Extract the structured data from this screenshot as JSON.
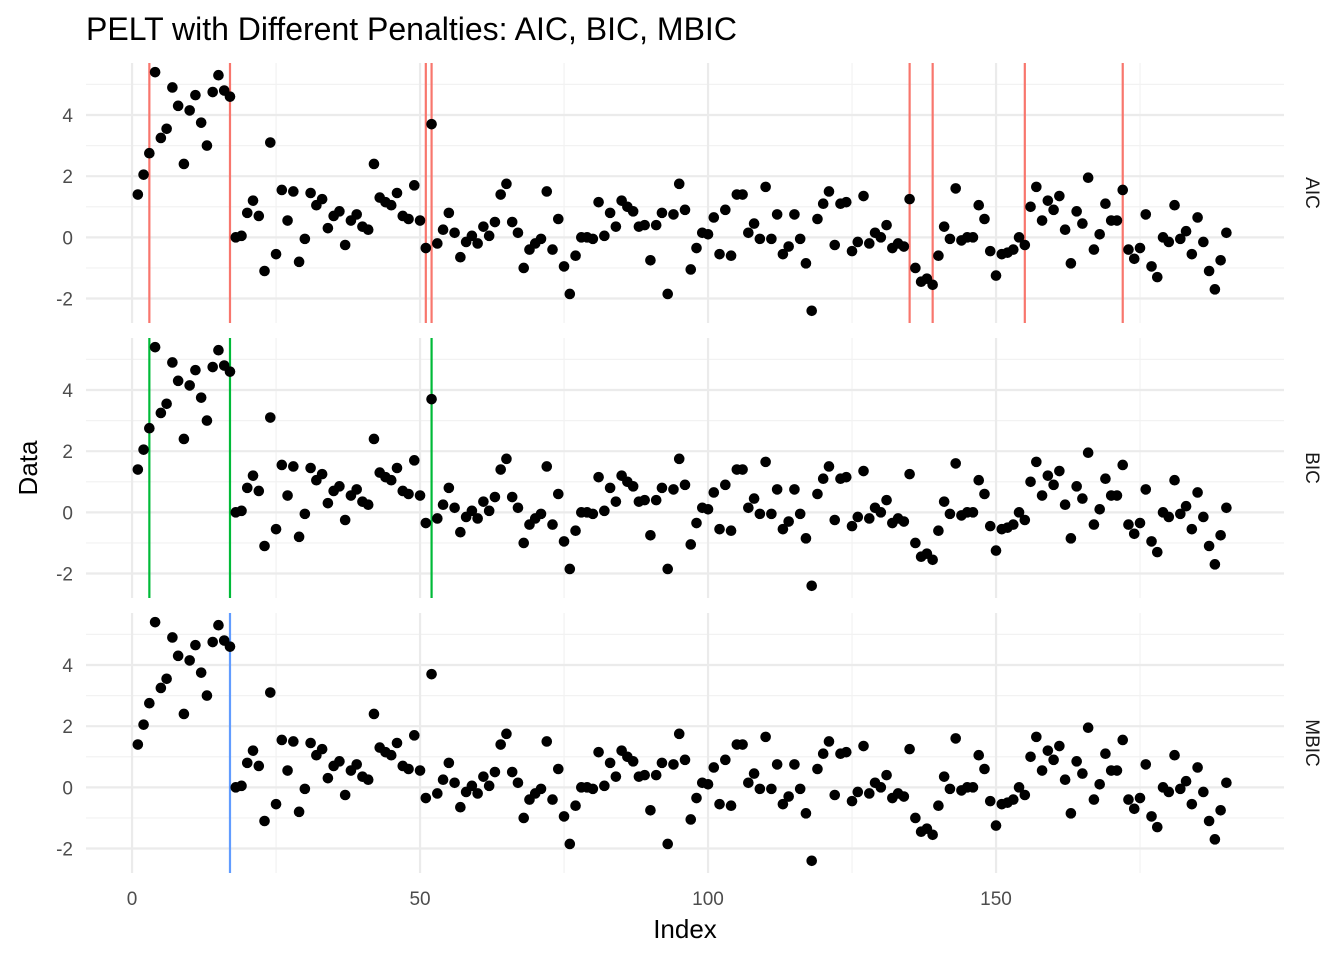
{
  "chart_data": {
    "type": "scatter",
    "title": "PELT with Different Penalties: AIC, BIC, MBIC",
    "xlabel": "Index",
    "ylabel": "Data",
    "xlim": [
      -8,
      200
    ],
    "ylim": [
      -2.8,
      5.7
    ],
    "x_ticks": [
      0,
      50,
      100,
      150
    ],
    "x_tick_labels": [
      "0",
      "50",
      "100",
      "150"
    ],
    "y_ticks": [
      -2,
      0,
      2,
      4
    ],
    "y_tick_labels": [
      "-2",
      "0",
      "2",
      "4"
    ],
    "grid": true,
    "legend": "none",
    "point_color": "#000000",
    "values": [
      1.4,
      2.05,
      2.75,
      5.4,
      3.25,
      3.55,
      4.9,
      4.3,
      2.4,
      4.15,
      4.65,
      3.75,
      3.0,
      4.75,
      5.3,
      4.8,
      4.6,
      0.0,
      0.05,
      0.8,
      1.2,
      0.7,
      -1.1,
      3.1,
      -0.55,
      1.55,
      0.55,
      1.5,
      -0.8,
      -0.05,
      1.45,
      1.05,
      1.25,
      0.3,
      0.7,
      0.85,
      -0.25,
      0.55,
      0.75,
      0.35,
      0.25,
      2.4,
      1.3,
      1.15,
      1.05,
      1.45,
      0.7,
      0.6,
      1.7,
      0.55,
      -0.35,
      3.7,
      -0.2,
      0.25,
      0.8,
      0.15,
      -0.65,
      -0.15,
      0.05,
      -0.2,
      0.35,
      0.05,
      0.5,
      1.4,
      1.75,
      0.5,
      0.15,
      -1.0,
      -0.4,
      -0.2,
      -0.05,
      1.5,
      -0.4,
      0.6,
      -0.95,
      -1.85,
      -0.6,
      0.0,
      0.0,
      -0.05,
      1.15,
      0.05,
      0.8,
      0.35,
      1.2,
      1.0,
      0.85,
      0.35,
      0.4,
      -0.75,
      0.4,
      0.8,
      -1.85,
      0.75,
      1.75,
      0.9,
      -1.05,
      -0.35,
      0.15,
      0.1,
      0.65,
      -0.55,
      0.9,
      -0.6,
      1.4,
      1.4,
      0.15,
      0.45,
      -0.05,
      1.65,
      -0.05,
      0.75,
      -0.55,
      -0.3,
      0.75,
      -0.05,
      -0.85,
      -2.4,
      0.6,
      1.1,
      1.5,
      -0.25,
      1.1,
      1.15,
      -0.45,
      -0.15,
      1.35,
      -0.2,
      0.15,
      0.0,
      0.4,
      -0.35,
      -0.2,
      -0.3,
      1.25,
      -1.0,
      -1.45,
      -1.35,
      -1.55,
      -0.6,
      0.35,
      -0.05,
      1.6,
      -0.1,
      0.0,
      0.0,
      1.05,
      0.6,
      -0.45,
      -1.25,
      -0.55,
      -0.5,
      -0.4,
      0.0,
      -0.25,
      1.0,
      1.65,
      0.55,
      1.2,
      0.9,
      1.35,
      0.25,
      -0.85,
      0.85,
      0.45,
      1.95,
      -0.4,
      0.1,
      1.1,
      0.55,
      0.55,
      1.55,
      -0.4,
      -0.7,
      -0.35,
      0.75,
      -0.95,
      -1.3,
      0.0,
      -0.15,
      1.05,
      -0.05,
      0.2,
      -0.55,
      0.65,
      -0.15,
      -1.1,
      -1.7,
      -0.75,
      0.15
    ],
    "panels": [
      {
        "name": "AIC",
        "line_color": "#F8766D",
        "changepoints": [
          3,
          17,
          51,
          52,
          135,
          139,
          155,
          172
        ]
      },
      {
        "name": "BIC",
        "line_color": "#00BA38",
        "changepoints": [
          3,
          17,
          52
        ]
      },
      {
        "name": "MBIC",
        "line_color": "#619CFF",
        "changepoints": [
          17
        ]
      }
    ]
  }
}
